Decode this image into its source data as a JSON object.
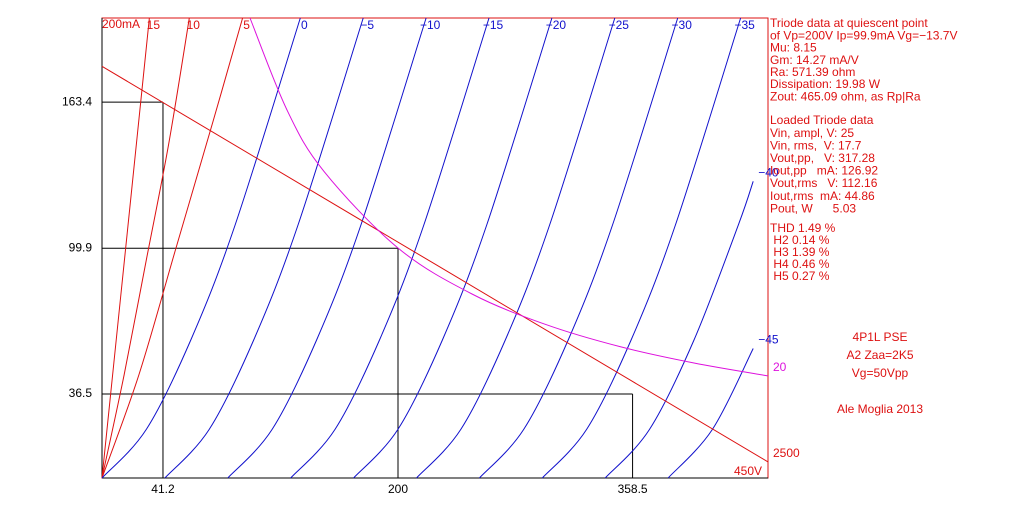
{
  "chart_data": {
    "type": "line",
    "y_max_label": "200mA",
    "x_max_label": "450V",
    "xlim": [
      0,
      450
    ],
    "ylim": [
      0,
      200
    ],
    "xticks": [
      41.2,
      200,
      358.5
    ],
    "yticks": [
      36.5,
      99.9,
      163.4
    ],
    "series": [
      {
        "name": "15",
        "color": "#dd1111",
        "x": [
          0,
          8,
          16,
          24,
          32
        ],
        "values": [
          0,
          50,
          100,
          150,
          200
        ]
      },
      {
        "name": "10",
        "color": "#dd1111",
        "x": [
          0,
          15,
          30,
          45,
          59
        ],
        "values": [
          0,
          45,
          95,
          145,
          200
        ]
      },
      {
        "name": "5",
        "color": "#dd1111",
        "x": [
          0,
          25,
          50,
          75,
          95
        ],
        "values": [
          0,
          45,
          100,
          155,
          200
        ]
      },
      {
        "name": "0",
        "color": "#1111cc",
        "x": [
          0,
          30,
          60,
          90,
          134
        ],
        "values": [
          0,
          21.2,
          60,
          110.1,
          200
        ]
      },
      {
        "name": "−5",
        "color": "#1111cc",
        "x": [
          42.5,
          72.5,
          102.5,
          132.5,
          176.5
        ],
        "values": [
          0,
          21.2,
          60,
          110.1,
          200
        ]
      },
      {
        "name": "−10",
        "color": "#1111cc",
        "x": [
          85,
          115,
          145,
          175,
          219
        ],
        "values": [
          0,
          21.2,
          60,
          110.1,
          200
        ]
      },
      {
        "name": "−15",
        "color": "#1111cc",
        "x": [
          127.5,
          157.5,
          187.5,
          217.5,
          261.5
        ],
        "values": [
          0,
          21.2,
          60,
          110.1,
          200
        ]
      },
      {
        "name": "−20",
        "color": "#1111cc",
        "x": [
          170,
          200,
          230,
          260,
          304
        ],
        "values": [
          0,
          21.2,
          60,
          110.1,
          200
        ]
      },
      {
        "name": "−25",
        "color": "#1111cc",
        "x": [
          212.5,
          242.5,
          272.5,
          302.5,
          346.5
        ],
        "values": [
          0,
          21.2,
          60,
          110.1,
          200
        ]
      },
      {
        "name": "−30",
        "color": "#1111cc",
        "x": [
          255,
          285,
          315,
          345,
          389
        ],
        "values": [
          0,
          21.2,
          60,
          110.1,
          200
        ]
      },
      {
        "name": "−35",
        "color": "#1111cc",
        "x": [
          297.5,
          327.5,
          357.5,
          387.5,
          431.5
        ],
        "values": [
          0,
          21.2,
          60,
          110.1,
          200
        ]
      },
      {
        "name": "−40",
        "color": "#1111cc",
        "x": [
          340,
          370,
          400,
          430,
          440
        ],
        "values": [
          0,
          21.2,
          60,
          110.1,
          129
        ]
      },
      {
        "name": "−45",
        "color": "#1111cc",
        "x": [
          382.5,
          412.5,
          440
        ],
        "values": [
          0,
          21.2,
          56.3
        ]
      }
    ],
    "load_line": {
      "name": "2500",
      "color": "#dd1111",
      "x": [
        0,
        450
      ],
      "values": [
        179,
        7
      ]
    },
    "dissipation_curve": {
      "name": "20",
      "color": "#dd11dd",
      "x": [
        100,
        125,
        150,
        200,
        250,
        300,
        350,
        400,
        450
      ],
      "values": [
        200,
        160,
        133.3,
        100,
        80,
        66.7,
        57.1,
        50,
        44.4
      ]
    },
    "annotations": {
      "quiescent": [
        "Triode data at quiescent point",
        "of Vp=200V Ip=99.9mA Vg=−13.7V",
        "Mu: 8.15",
        "Gm: 14.27 mA/V",
        "Ra: 571.39 ohm",
        "Dissipation: 19.98 W",
        "Zout: 465.09 ohm, as Rp|Ra"
      ],
      "loaded": [
        "Loaded Triode data",
        "Vin, ampl, V: 25",
        "Vin, rms,  V: 17.7",
        "Vout,pp,   V: 317.28",
        "Iout,pp   mA: 126.92",
        "Vout,rms   V: 112.16",
        "Iout,rms  mA: 44.86",
        "Pout, W      5.03"
      ],
      "distortion": [
        "THD 1.49 %",
        " H2 0.14 %",
        " H3 1.39 %",
        " H4 0.46 %",
        " H5 0.27 %"
      ],
      "credits": [
        "4P1L PSE",
        "A2 Zaa=2K5",
        "Vg=50Vpp",
        "Ale Moglia 2013"
      ]
    }
  }
}
